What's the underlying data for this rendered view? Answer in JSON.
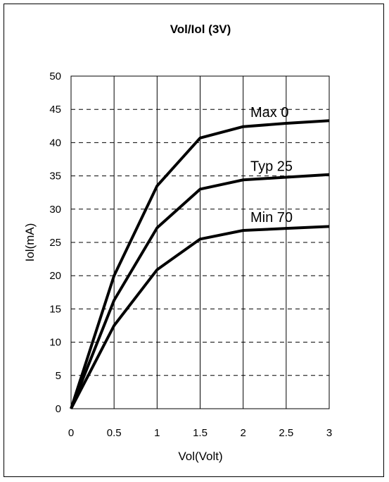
{
  "chart_data": {
    "type": "line",
    "title": "Vol/Iol (3V)",
    "xlabel": "Vol(Volt)",
    "ylabel": "Iol(mA)",
    "xlim": [
      0,
      3
    ],
    "ylim": [
      0,
      50
    ],
    "x_ticks": [
      "0",
      "0.5",
      "1",
      "1.5",
      "2",
      "2.5",
      "3"
    ],
    "y_ticks": [
      "0",
      "5",
      "10",
      "15",
      "20",
      "25",
      "30",
      "35",
      "40",
      "45",
      "50"
    ],
    "grid": {
      "vertical": "solid",
      "horizontal": "dashed"
    },
    "legend": "none",
    "x": [
      0,
      0.5,
      1,
      1.5,
      2,
      2.5,
      3
    ],
    "series": [
      {
        "name": "Max 0",
        "values": [
          0,
          20.0,
          33.5,
          40.7,
          42.4,
          42.9,
          43.3
        ]
      },
      {
        "name": "Typ 25",
        "values": [
          0,
          16.3,
          27.2,
          33.0,
          34.4,
          34.8,
          35.2
        ]
      },
      {
        "name": "Min 70",
        "values": [
          0,
          12.5,
          20.9,
          25.5,
          26.8,
          27.1,
          27.4
        ]
      }
    ],
    "line_color": "#000000"
  }
}
